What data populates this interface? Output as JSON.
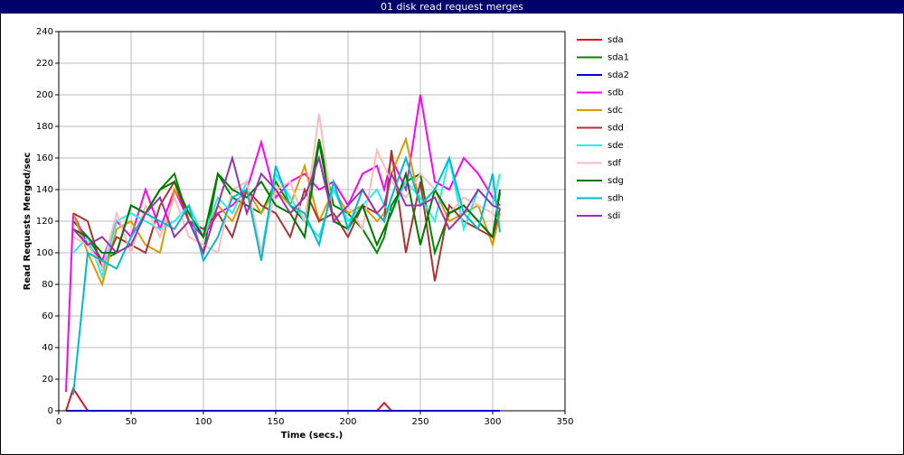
{
  "chart_data": {
    "type": "line",
    "title": "01 disk read request merges",
    "x_label": "Time (secs.)",
    "y_label": "Read Requests Merged/sec",
    "xlim": [
      0,
      350
    ],
    "xticks": [
      0,
      50,
      100,
      150,
      200,
      250,
      300,
      350
    ],
    "ylim": [
      0,
      240
    ],
    "yticks": [
      0,
      20,
      40,
      60,
      80,
      100,
      120,
      140,
      160,
      180,
      200,
      220,
      240
    ],
    "grid": true,
    "legend": "right",
    "x": [
      5,
      10,
      20,
      30,
      40,
      50,
      60,
      70,
      80,
      90,
      100,
      110,
      120,
      130,
      140,
      150,
      160,
      170,
      180,
      190,
      200,
      210,
      220,
      225,
      230,
      240,
      250,
      260,
      270,
      280,
      290,
      300,
      305
    ],
    "series": [
      {
        "name": "sda",
        "color": "#dd1122",
        "values": [
          0,
          14,
          0,
          0,
          0,
          0,
          0,
          0,
          0,
          0,
          0,
          0,
          0,
          0,
          0,
          0,
          0,
          0,
          0,
          0,
          0,
          0,
          0,
          5,
          0,
          0,
          0,
          0,
          0,
          0,
          0,
          0,
          0
        ]
      },
      {
        "name": "sda1",
        "color": "#008800",
        "values": [
          null,
          120,
          110,
          95,
          100,
          130,
          125,
          140,
          150,
          120,
          100,
          150,
          135,
          130,
          125,
          145,
          130,
          120,
          172,
          130,
          125,
          115,
          100,
          110,
          130,
          145,
          150,
          100,
          125,
          130,
          120,
          110,
          138
        ]
      },
      {
        "name": "sda2",
        "color": "#0000cc",
        "values": [
          0,
          0,
          0,
          0,
          0,
          0,
          0,
          0,
          0,
          0,
          0,
          0,
          0,
          0,
          0,
          0,
          0,
          0,
          0,
          0,
          0,
          0,
          0,
          0,
          0,
          0,
          0,
          0,
          0,
          0,
          0,
          0,
          0
        ]
      },
      {
        "name": "sdb",
        "color": "#ff00ff",
        "values": [
          12,
          125,
          105,
          95,
          120,
          110,
          140,
          115,
          140,
          120,
          110,
          125,
          130,
          140,
          170,
          135,
          145,
          150,
          140,
          145,
          130,
          150,
          155,
          140,
          160,
          140,
          200,
          145,
          140,
          160,
          150,
          135,
          130
        ]
      },
      {
        "name": "sdc",
        "color": "#dd9900",
        "values": [
          null,
          125,
          100,
          80,
          115,
          120,
          105,
          100,
          140,
          125,
          110,
          130,
          120,
          140,
          125,
          140,
          130,
          155,
          120,
          140,
          125,
          130,
          120,
          125,
          150,
          172,
          130,
          140,
          120,
          125,
          130,
          105,
          125
        ]
      },
      {
        "name": "sdd",
        "color": "#aa3333",
        "values": [
          null,
          125,
          120,
          90,
          110,
          105,
          100,
          130,
          145,
          120,
          115,
          125,
          110,
          140,
          130,
          125,
          110,
          140,
          120,
          125,
          110,
          130,
          125,
          120,
          165,
          100,
          145,
          82,
          130,
          120,
          115,
          110,
          128
        ]
      },
      {
        "name": "sde",
        "color": "#22eeee",
        "values": [
          null,
          100,
          110,
          85,
          120,
          125,
          120,
          115,
          120,
          130,
          110,
          135,
          125,
          145,
          100,
          150,
          135,
          120,
          110,
          140,
          120,
          130,
          140,
          130,
          125,
          145,
          135,
          120,
          160,
          115,
          140,
          130,
          150
        ]
      },
      {
        "name": "sdf",
        "color": "#ffbbbb",
        "values": [
          null,
          110,
          105,
          90,
          125,
          100,
          130,
          110,
          135,
          110,
          105,
          100,
          140,
          145,
          100,
          140,
          145,
          120,
          188,
          120,
          130,
          115,
          165,
          155,
          145,
          135,
          150,
          140,
          125,
          135,
          130,
          125,
          120
        ]
      },
      {
        "name": "sdg",
        "color": "#007700",
        "values": [
          null,
          115,
          110,
          100,
          100,
          130,
          125,
          140,
          145,
          125,
          110,
          150,
          140,
          135,
          145,
          130,
          125,
          110,
          170,
          120,
          115,
          130,
          105,
          115,
          125,
          150,
          105,
          140,
          125,
          130,
          120,
          110,
          140
        ]
      },
      {
        "name": "sdh",
        "color": "#00bbcc",
        "values": [
          null,
          10,
          100,
          95,
          90,
          110,
          125,
          120,
          115,
          130,
          95,
          110,
          135,
          140,
          95,
          155,
          130,
          125,
          105,
          145,
          115,
          140,
          125,
          120,
          135,
          160,
          130,
          140,
          160,
          125,
          115,
          150,
          113
        ]
      },
      {
        "name": "sdi",
        "color": "#9933aa",
        "values": [
          null,
          115,
          105,
          110,
          100,
          105,
          125,
          135,
          110,
          120,
          100,
          130,
          160,
          125,
          150,
          140,
          125,
          135,
          160,
          120,
          130,
          140,
          125,
          130,
          150,
          130,
          130,
          135,
          115,
          125,
          140,
          130,
          128
        ]
      }
    ]
  }
}
